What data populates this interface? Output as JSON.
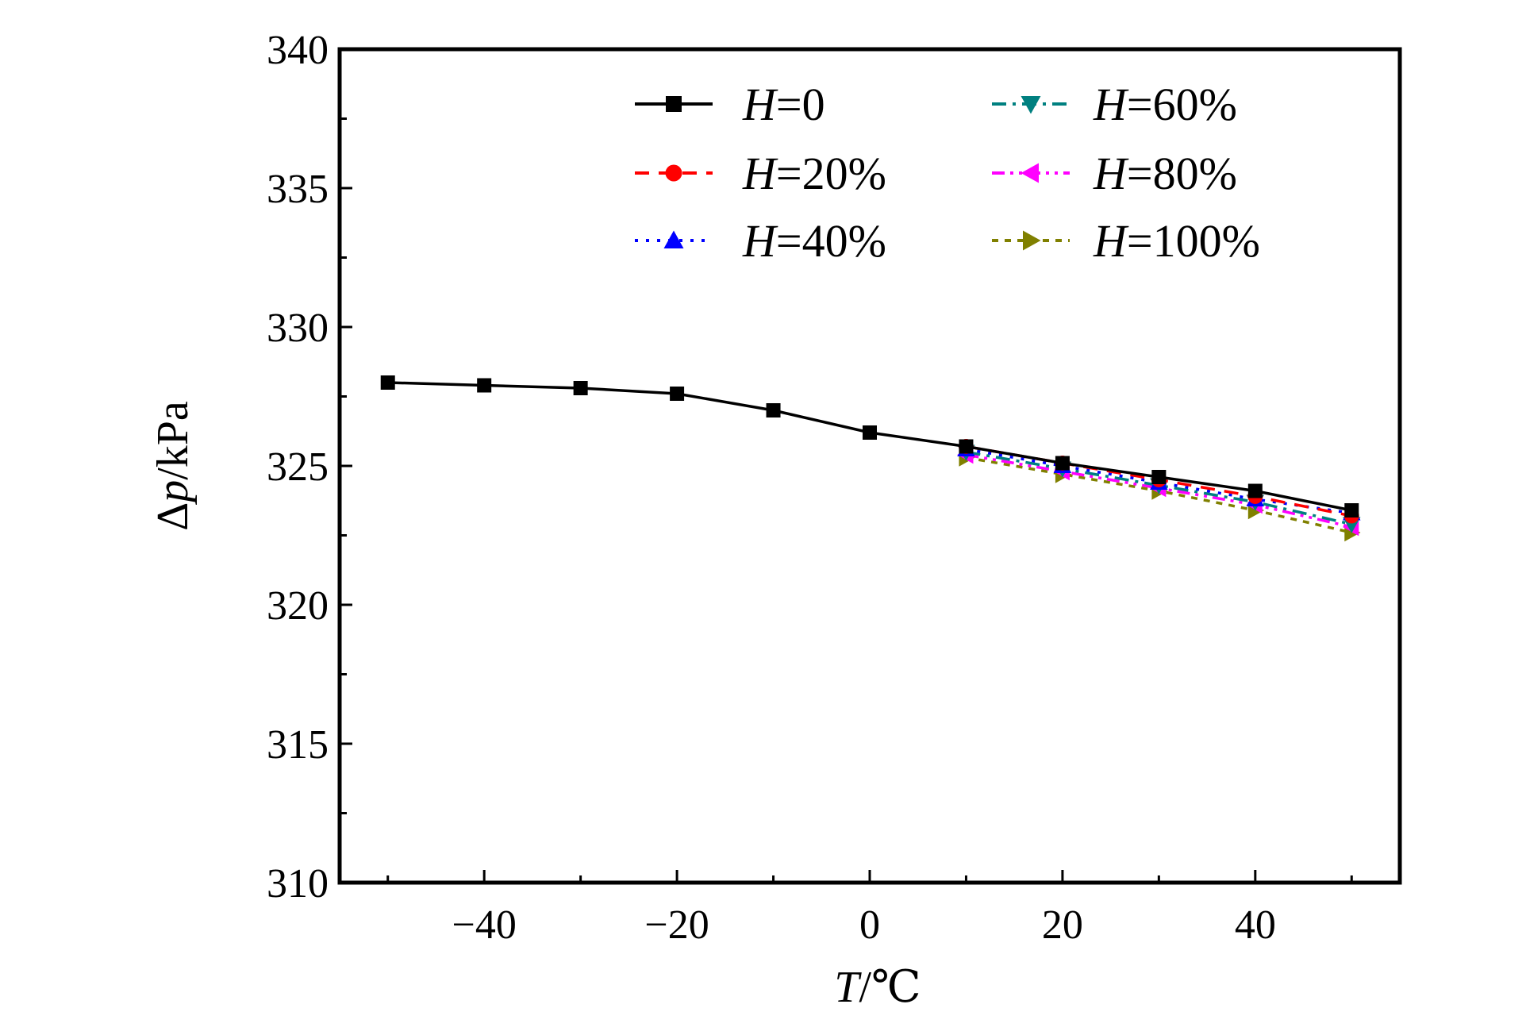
{
  "chart_data": {
    "type": "line",
    "title": "",
    "xlabel_italic": "T",
    "xlabel_rest": "/℃",
    "ylabel_prefix": "Δ",
    "ylabel_italic": "p",
    "ylabel_rest": "/kPa",
    "xlim": [
      -55,
      55
    ],
    "ylim": [
      310,
      340
    ],
    "xticks": [
      -40,
      -20,
      0,
      20,
      40
    ],
    "xtick_labels": [
      "−40",
      "−20",
      "0",
      "20",
      "40"
    ],
    "yticks": [
      310,
      315,
      320,
      325,
      330,
      335,
      340
    ],
    "ytick_labels": [
      "310",
      "315",
      "320",
      "325",
      "330",
      "335",
      "340"
    ],
    "grid": false,
    "legend_placement": "top",
    "series": [
      {
        "name": "H=0",
        "name_italic": "H",
        "name_rest": "=0",
        "color": "#000000",
        "marker": "square",
        "dash": "solid",
        "x": [
          -50,
          -40,
          -30,
          -20,
          -10,
          0,
          10,
          20,
          30,
          40,
          50
        ],
        "y": [
          328.0,
          327.9,
          327.8,
          327.6,
          327.0,
          326.2,
          325.7,
          325.1,
          324.6,
          324.1,
          323.4
        ]
      },
      {
        "name": "H=20%",
        "name_italic": "H",
        "name_rest": "=20%",
        "color": "#ff0000",
        "marker": "circle",
        "dash": "dash",
        "x": [
          10,
          20,
          30,
          40,
          50
        ],
        "y": [
          325.7,
          325.1,
          324.5,
          323.9,
          323.2
        ]
      },
      {
        "name": "H=40%",
        "name_italic": "H",
        "name_rest": "=40%",
        "color": "#0000ff",
        "marker": "triangle-up",
        "dash": "dot",
        "x": [
          10,
          20,
          30,
          40,
          50
        ],
        "y": [
          325.6,
          325.0,
          324.4,
          323.8,
          323.3
        ]
      },
      {
        "name": "H=60%",
        "name_italic": "H",
        "name_rest": "=60%",
        "color": "#008080",
        "marker": "triangle-down",
        "dash": "dashdot",
        "x": [
          10,
          20,
          30,
          40,
          50
        ],
        "y": [
          325.5,
          324.9,
          324.3,
          323.7,
          322.9
        ]
      },
      {
        "name": "H=80%",
        "name_italic": "H",
        "name_rest": "=80%",
        "color": "#ff00ff",
        "marker": "triangle-left",
        "dash": "dashdotdot",
        "x": [
          10,
          20,
          30,
          40,
          50
        ],
        "y": [
          325.4,
          324.8,
          324.2,
          323.6,
          322.8
        ]
      },
      {
        "name": "H=100%",
        "name_italic": "H",
        "name_rest": "=100%",
        "color": "#808000",
        "marker": "triangle-right",
        "dash": "shortdash",
        "x": [
          10,
          20,
          30,
          40,
          50
        ],
        "y": [
          325.3,
          324.7,
          324.1,
          323.4,
          322.6
        ]
      }
    ]
  }
}
